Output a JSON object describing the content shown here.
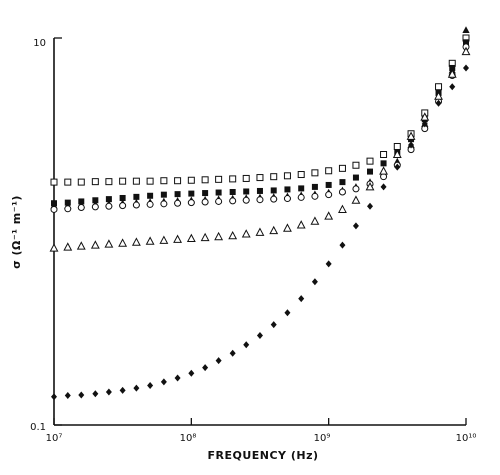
{
  "chart_data": {
    "type": "scatter",
    "xlabel": "FREQUENCY (Hz)",
    "ylabel": "σ (Ω⁻¹ m⁻¹)",
    "x_scale": "log",
    "y_scale": "log",
    "xlim": [
      10000000,
      10000000000
    ],
    "ylim": [
      0.1,
      10
    ],
    "x_tick_labels": [
      "10⁷",
      "10⁸",
      "10⁹",
      "10¹⁰"
    ],
    "y_tick_labels": [
      "0.1",
      "10"
    ],
    "grid": false,
    "series": [
      {
        "marker": "open-square",
        "x": [
          10000000.0,
          12600000.0,
          15800000.0,
          20000000.0,
          25100000.0,
          31600000.0,
          39800000.0,
          50100000.0,
          63100000.0,
          79400000.0,
          100000000.0,
          126000000.0,
          158000000.0,
          200000000.0,
          251000000.0,
          316000000.0,
          398000000.0,
          501000000.0,
          631000000.0,
          794000000.0,
          1000000000.0,
          1260000000.0,
          1580000000.0,
          2000000000.0,
          2510000000.0,
          3160000000.0,
          3980000000.0,
          5010000000.0,
          6310000000.0,
          7940000000.0,
          10000000000.0
        ],
        "y": [
          1.8,
          1.8,
          1.8,
          1.81,
          1.81,
          1.82,
          1.82,
          1.82,
          1.83,
          1.83,
          1.84,
          1.85,
          1.86,
          1.87,
          1.88,
          1.9,
          1.92,
          1.94,
          1.97,
          2.01,
          2.06,
          2.12,
          2.2,
          2.31,
          2.5,
          2.75,
          3.2,
          4.1,
          5.6,
          7.4,
          10.0
        ]
      },
      {
        "marker": "filled-square",
        "x": [
          10000000.0,
          12600000.0,
          15800000.0,
          20000000.0,
          25100000.0,
          31600000.0,
          39800000.0,
          50100000.0,
          63100000.0,
          79400000.0,
          100000000.0,
          126000000.0,
          158000000.0,
          200000000.0,
          251000000.0,
          316000000.0,
          398000000.0,
          501000000.0,
          631000000.0,
          794000000.0,
          1000000000.0,
          1260000000.0,
          1580000000.0,
          2000000000.0,
          2510000000.0,
          3160000000.0,
          3980000000.0,
          5010000000.0,
          6310000000.0,
          7940000000.0,
          10000000000.0
        ],
        "y": [
          1.4,
          1.41,
          1.43,
          1.45,
          1.47,
          1.49,
          1.51,
          1.53,
          1.55,
          1.56,
          1.57,
          1.58,
          1.59,
          1.6,
          1.61,
          1.62,
          1.63,
          1.65,
          1.67,
          1.7,
          1.74,
          1.8,
          1.9,
          2.04,
          2.25,
          2.55,
          3.0,
          3.8,
          5.2,
          7.0,
          9.5
        ]
      },
      {
        "marker": "filled-triangle",
        "x": [
          10000000.0,
          12600000.0,
          15800000.0,
          20000000.0,
          25100000.0,
          31600000.0,
          39800000.0,
          50100000.0,
          63100000.0,
          79400000.0,
          100000000.0,
          126000000.0,
          158000000.0,
          200000000.0,
          251000000.0,
          316000000.0,
          398000000.0,
          501000000.0,
          631000000.0,
          794000000.0,
          1000000000.0,
          1260000000.0,
          1580000000.0,
          2000000000.0,
          2510000000.0,
          3160000000.0,
          3980000000.0,
          5010000000.0,
          6310000000.0,
          7940000000.0,
          10000000000.0
        ],
        "y": [
          1.36,
          1.36,
          1.37,
          1.38,
          1.39,
          1.4,
          1.41,
          1.42,
          1.43,
          1.44,
          1.45,
          1.46,
          1.47,
          1.48,
          1.49,
          1.5,
          1.51,
          1.52,
          1.54,
          1.56,
          1.59,
          1.63,
          1.7,
          1.8,
          2.0,
          2.3,
          2.8,
          3.6,
          5.0,
          6.8,
          11.0
        ]
      },
      {
        "marker": "open-circle",
        "x": [
          10000000.0,
          12600000.0,
          15800000.0,
          20000000.0,
          25100000.0,
          31600000.0,
          39800000.0,
          50100000.0,
          63100000.0,
          79400000.0,
          100000000.0,
          126000000.0,
          158000000.0,
          200000000.0,
          251000000.0,
          316000000.0,
          398000000.0,
          501000000.0,
          631000000.0,
          794000000.0,
          1000000000.0,
          1260000000.0,
          1580000000.0,
          2000000000.0,
          2510000000.0,
          3160000000.0,
          3980000000.0,
          5010000000.0,
          6310000000.0,
          7940000000.0,
          10000000000.0
        ],
        "y": [
          1.3,
          1.31,
          1.33,
          1.34,
          1.35,
          1.36,
          1.37,
          1.38,
          1.39,
          1.4,
          1.41,
          1.42,
          1.43,
          1.44,
          1.45,
          1.46,
          1.47,
          1.48,
          1.5,
          1.52,
          1.55,
          1.6,
          1.66,
          1.76,
          1.92,
          2.2,
          2.65,
          3.4,
          4.7,
          6.4,
          9.0
        ]
      },
      {
        "marker": "open-triangle",
        "x": [
          10000000.0,
          12600000.0,
          15800000.0,
          20000000.0,
          25100000.0,
          31600000.0,
          39800000.0,
          50100000.0,
          63100000.0,
          79400000.0,
          100000000.0,
          126000000.0,
          158000000.0,
          200000000.0,
          251000000.0,
          316000000.0,
          398000000.0,
          501000000.0,
          631000000.0,
          794000000.0,
          1000000000.0,
          1260000000.0,
          1580000000.0,
          2000000000.0,
          2510000000.0,
          3160000000.0,
          3980000000.0,
          5010000000.0,
          6310000000.0,
          7940000000.0,
          10000000000.0
        ],
        "y": [
          0.82,
          0.83,
          0.84,
          0.85,
          0.86,
          0.87,
          0.88,
          0.89,
          0.9,
          0.91,
          0.92,
          0.93,
          0.94,
          0.95,
          0.97,
          0.99,
          1.01,
          1.04,
          1.08,
          1.13,
          1.2,
          1.3,
          1.45,
          1.7,
          2.05,
          2.5,
          3.1,
          3.9,
          5.0,
          6.5,
          8.5
        ]
      },
      {
        "marker": "filled-diamond",
        "x": [
          10000000.0,
          12600000.0,
          15800000.0,
          20000000.0,
          25100000.0,
          31600000.0,
          39800000.0,
          50100000.0,
          63100000.0,
          79400000.0,
          100000000.0,
          126000000.0,
          158000000.0,
          200000000.0,
          251000000.0,
          316000000.0,
          398000000.0,
          501000000.0,
          631000000.0,
          794000000.0,
          1000000000.0,
          1260000000.0,
          1580000000.0,
          2000000000.0,
          2510000000.0,
          3160000000.0,
          3980000000.0,
          5010000000.0,
          6310000000.0,
          7940000000.0,
          10000000000.0
        ],
        "y": [
          0.14,
          0.142,
          0.143,
          0.145,
          0.148,
          0.151,
          0.155,
          0.16,
          0.167,
          0.175,
          0.185,
          0.198,
          0.215,
          0.235,
          0.26,
          0.29,
          0.33,
          0.38,
          0.45,
          0.55,
          0.68,
          0.85,
          1.07,
          1.35,
          1.7,
          2.15,
          2.8,
          3.6,
          4.6,
          5.6,
          7.0
        ]
      }
    ]
  }
}
